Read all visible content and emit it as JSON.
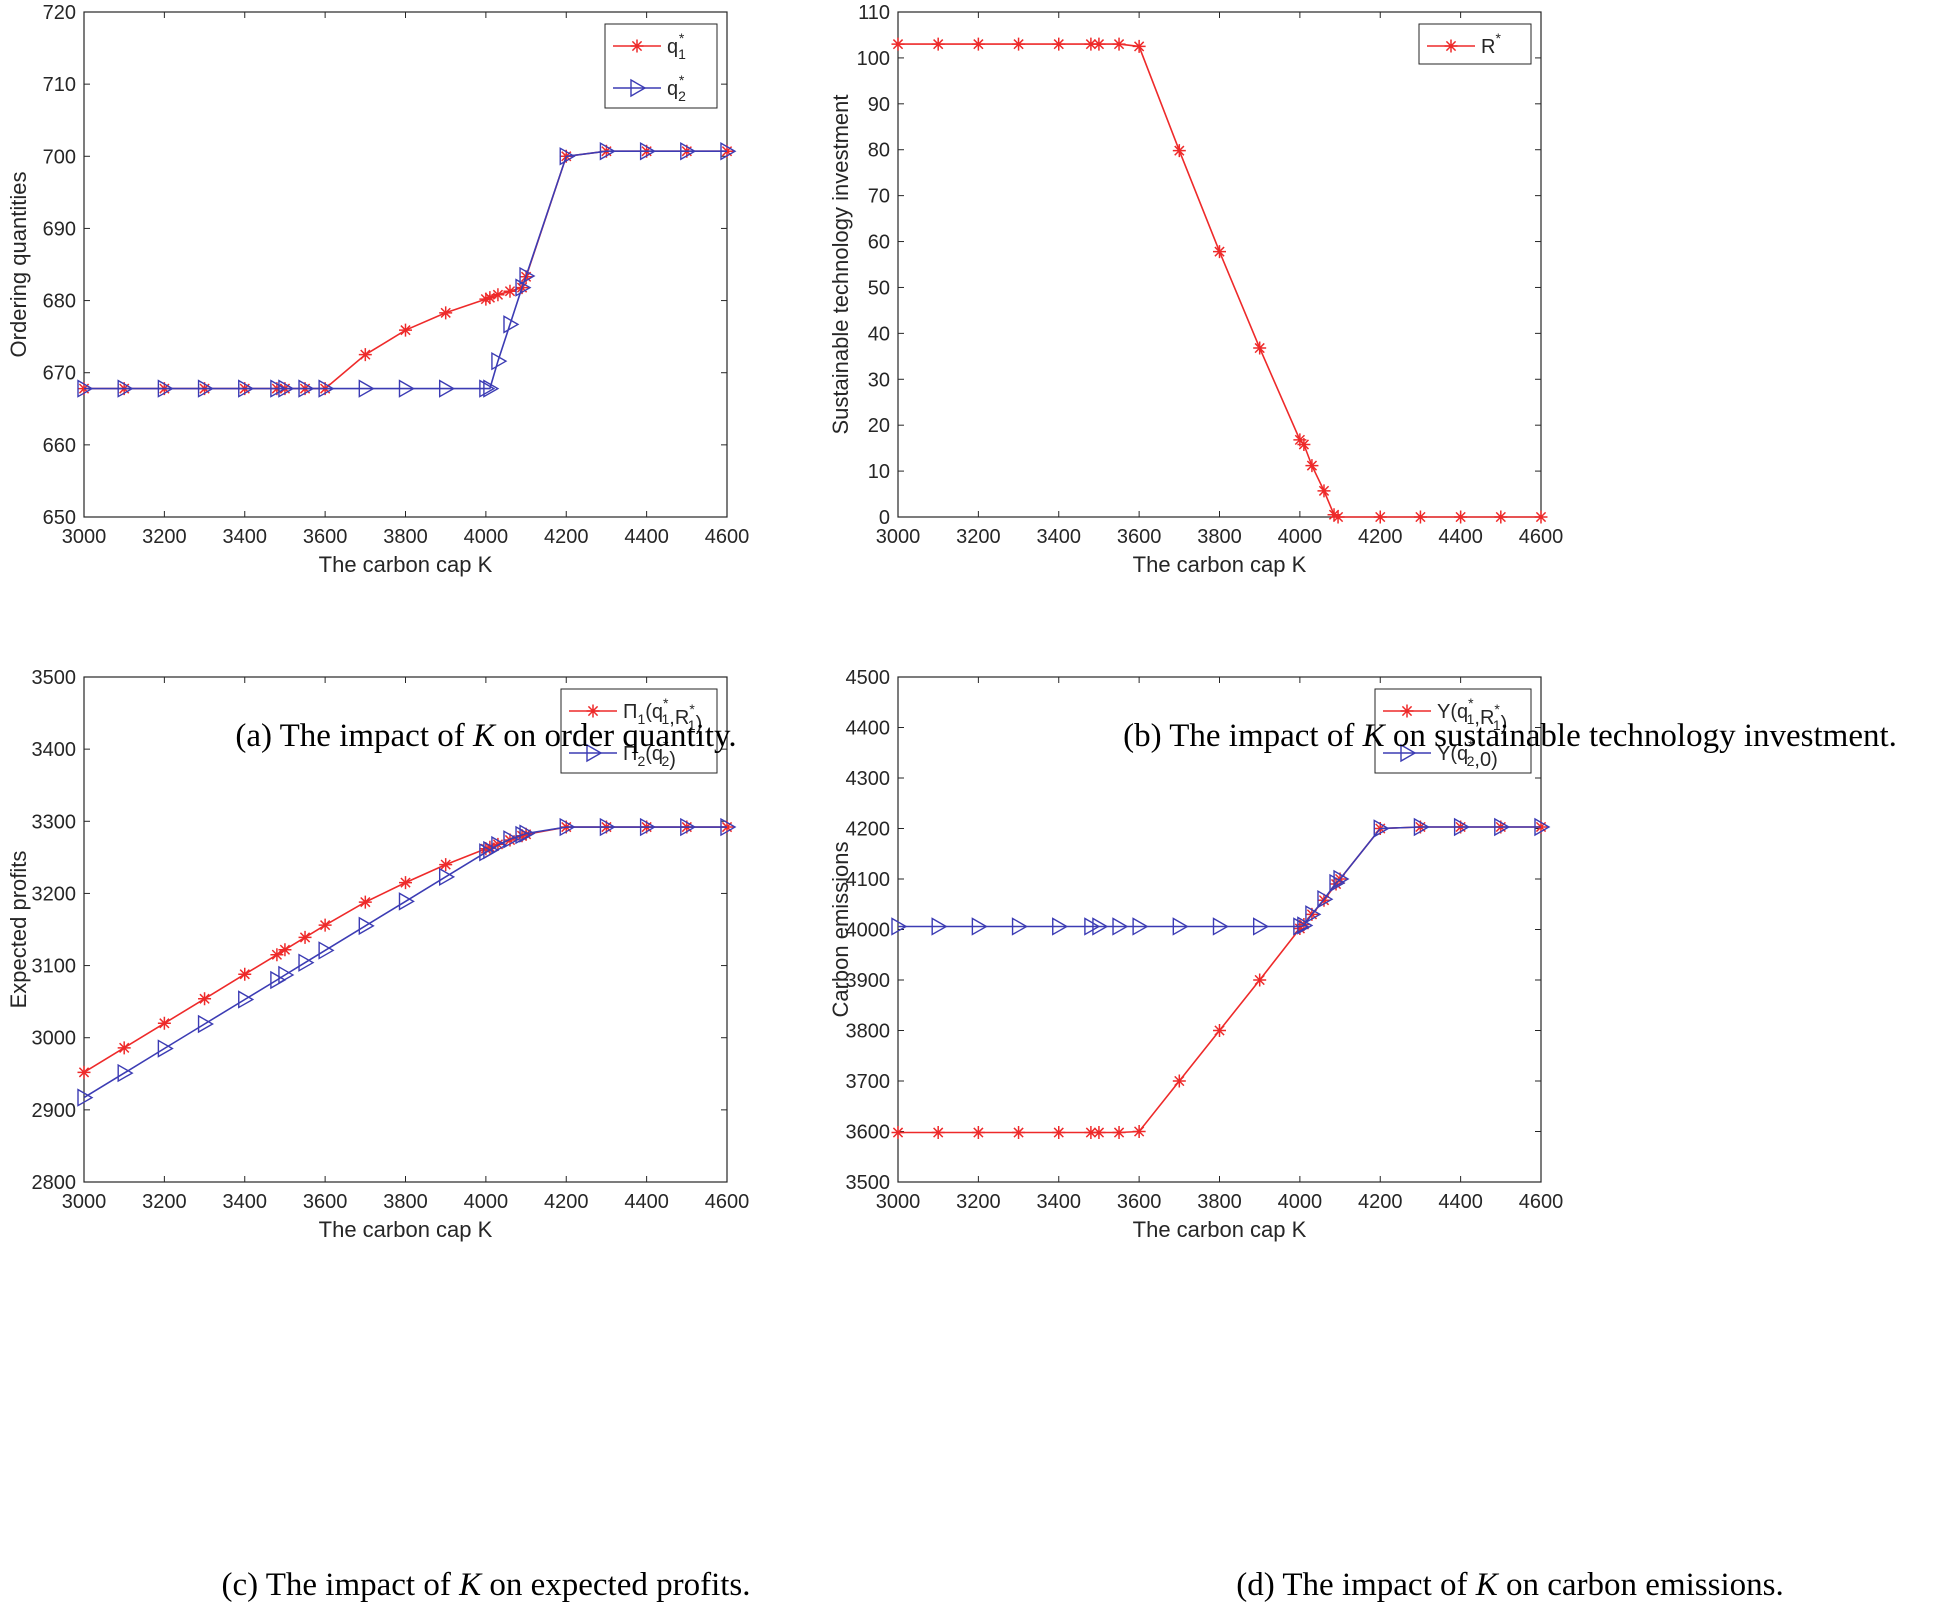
{
  "colors": {
    "series1": "#ee2a2a",
    "series2": "#3c3cb4",
    "axis": "#262626",
    "background": "#ffffff"
  },
  "figure": {
    "captions": [
      {
        "prefix": "(a) The impact of ",
        "var": "K",
        "suffix": " on order quantity."
      },
      {
        "prefix": "(b) The impact of ",
        "var": "K",
        "suffix": " on sustainable technology investment."
      },
      {
        "prefix": "(c) The impact of ",
        "var": "K",
        "suffix": " on expected profits."
      },
      {
        "prefix": "(d) The impact of ",
        "var": "K",
        "suffix": " on carbon emissions."
      }
    ]
  },
  "chart_data": [
    {
      "type": "line",
      "xlabel": "The carbon cap K",
      "ylabel": "Ordering quantities",
      "xlim": [
        3000,
        4600
      ],
      "ylim": [
        650,
        720
      ],
      "xticks": [
        3000,
        3200,
        3400,
        3600,
        3800,
        4000,
        4200,
        4400,
        4600
      ],
      "yticks": [
        650,
        660,
        670,
        680,
        690,
        700,
        710,
        720
      ],
      "legend_position": "top-right",
      "series": [
        {
          "name": "q1*",
          "legend": {
            "base": "q",
            "sub": "1",
            "sup": "*"
          },
          "color": "#ee2a2a",
          "marker": "asterisk",
          "x": [
            3000,
            3100,
            3200,
            3300,
            3400,
            3480,
            3500,
            3550,
            3600,
            3700,
            3800,
            3900,
            4000,
            4010,
            4030,
            4060,
            4090,
            4100,
            4200,
            4300,
            4400,
            4500,
            4600
          ],
          "y": [
            667.8,
            667.8,
            667.8,
            667.8,
            667.8,
            667.8,
            667.8,
            667.8,
            667.8,
            672.5,
            675.9,
            678.3,
            680.2,
            680.4,
            680.8,
            681.3,
            681.8,
            683.3,
            700.0,
            700.7,
            700.7,
            700.7,
            700.7
          ]
        },
        {
          "name": "q2*",
          "legend": {
            "base": "q",
            "sub": "2",
            "sup": "*"
          },
          "color": "#3c3cb4",
          "marker": "triangle-right",
          "x": [
            3000,
            3100,
            3200,
            3300,
            3400,
            3480,
            3500,
            3550,
            3600,
            3700,
            3800,
            3900,
            4000,
            4010,
            4030,
            4060,
            4090,
            4100,
            4200,
            4300,
            4400,
            4500,
            4600
          ],
          "y": [
            667.8,
            667.8,
            667.8,
            667.8,
            667.8,
            667.8,
            667.8,
            667.8,
            667.8,
            667.8,
            667.8,
            667.8,
            667.8,
            667.8,
            671.6,
            676.7,
            681.8,
            683.4,
            700.0,
            700.7,
            700.7,
            700.7,
            700.7
          ]
        }
      ]
    },
    {
      "type": "line",
      "xlabel": "The carbon cap K",
      "ylabel": "Sustainable technology investment",
      "xlim": [
        3000,
        4600
      ],
      "ylim": [
        0,
        110
      ],
      "xticks": [
        3000,
        3200,
        3400,
        3600,
        3800,
        4000,
        4200,
        4400,
        4600
      ],
      "yticks": [
        0,
        10,
        20,
        30,
        40,
        50,
        60,
        70,
        80,
        90,
        100,
        110
      ],
      "legend_position": "top-right",
      "series": [
        {
          "name": "R*",
          "legend": {
            "base": "R",
            "sub": "",
            "sup": "*"
          },
          "color": "#ee2a2a",
          "marker": "asterisk",
          "x": [
            3000,
            3100,
            3200,
            3300,
            3400,
            3480,
            3500,
            3550,
            3600,
            3700,
            3800,
            3900,
            4000,
            4010,
            4030,
            4060,
            4085,
            4095,
            4200,
            4300,
            4400,
            4500,
            4600
          ],
          "y": [
            103,
            103,
            103,
            103,
            103,
            103,
            103,
            103,
            102.5,
            79.8,
            57.8,
            36.8,
            16.8,
            15.8,
            11.2,
            5.7,
            0.5,
            0,
            0,
            0,
            0,
            0,
            0
          ]
        }
      ]
    },
    {
      "type": "line",
      "xlabel": "The carbon cap K",
      "ylabel": "Expected profits",
      "xlim": [
        3000,
        4600
      ],
      "ylim": [
        2800,
        3500
      ],
      "xticks": [
        3000,
        3200,
        3400,
        3600,
        3800,
        4000,
        4200,
        4400,
        4600
      ],
      "yticks": [
        2800,
        2900,
        3000,
        3100,
        3200,
        3300,
        3400,
        3500
      ],
      "legend_position": "top-right",
      "series": [
        {
          "name": "Π1(q1*,R1*)",
          "legend": {
            "base": "Π",
            "sub": "1",
            "args": [
              {
                "b": "q",
                "sub": "1",
                "sup": "*"
              },
              {
                "b": "R",
                "sub": "1",
                "sup": "*"
              }
            ]
          },
          "color": "#ee2a2a",
          "marker": "asterisk",
          "x": [
            3000,
            3100,
            3200,
            3300,
            3400,
            3480,
            3500,
            3550,
            3600,
            3700,
            3800,
            3900,
            4000,
            4010,
            4030,
            4060,
            4090,
            4100,
            4200,
            4300,
            4400,
            4500,
            4600
          ],
          "y": [
            2952,
            2986,
            3020,
            3054,
            3088,
            3115,
            3122,
            3139,
            3156,
            3188,
            3215,
            3240,
            3262,
            3264,
            3268,
            3274,
            3280,
            3282,
            3292,
            3292,
            3292,
            3292,
            3292
          ]
        },
        {
          "name": "Π2(q2*)",
          "legend": {
            "base": "Π",
            "sub": "2",
            "args": [
              {
                "b": "q",
                "sub": "2",
                "sup": "*"
              }
            ]
          },
          "color": "#3c3cb4",
          "marker": "triangle-right",
          "x": [
            3000,
            3100,
            3200,
            3300,
            3400,
            3480,
            3500,
            3550,
            3600,
            3700,
            3800,
            3900,
            4000,
            4010,
            4030,
            4060,
            4090,
            4100,
            4200,
            4300,
            4400,
            4500,
            4600
          ],
          "y": [
            2917,
            2951,
            2985,
            3019,
            3053,
            3080,
            3087,
            3104,
            3121,
            3155,
            3189,
            3223,
            3257,
            3260,
            3267,
            3275,
            3281,
            3283,
            3292,
            3292,
            3292,
            3292,
            3292
          ]
        }
      ]
    },
    {
      "type": "line",
      "xlabel": "The carbon cap K",
      "ylabel": "Carbon emissions",
      "xlim": [
        3000,
        4600
      ],
      "ylim": [
        3500,
        4500
      ],
      "xticks": [
        3000,
        3200,
        3400,
        3600,
        3800,
        4000,
        4200,
        4400,
        4600
      ],
      "yticks": [
        3500,
        3600,
        3700,
        3800,
        3900,
        4000,
        4100,
        4200,
        4300,
        4400,
        4500
      ],
      "legend_position": "top-right",
      "series": [
        {
          "name": "Y(q1*,R1*)",
          "legend": {
            "base": "Y",
            "sub": "",
            "args": [
              {
                "b": "q",
                "sub": "1",
                "sup": "*"
              },
              {
                "b": "R",
                "sub": "1",
                "sup": "*"
              }
            ]
          },
          "color": "#ee2a2a",
          "marker": "asterisk",
          "x": [
            3000,
            3100,
            3200,
            3300,
            3400,
            3480,
            3500,
            3550,
            3600,
            3700,
            3800,
            3900,
            4000,
            4010,
            4030,
            4060,
            4090,
            4100,
            4200,
            4300,
            4400,
            4500,
            4600
          ],
          "y": [
            3598,
            3598,
            3598,
            3598,
            3598,
            3598,
            3598,
            3598,
            3600,
            3700,
            3800,
            3900,
            4002,
            4010,
            4030,
            4058,
            4090,
            4100,
            4200,
            4203,
            4203,
            4203,
            4203
          ]
        },
        {
          "name": "Y(q2*,0)",
          "legend": {
            "base": "Y",
            "sub": "",
            "args": [
              {
                "b": "q",
                "sub": "2",
                "sup": "*"
              },
              {
                "b": "0",
                "sub": "",
                "sup": ""
              }
            ]
          },
          "color": "#3c3cb4",
          "marker": "triangle-right",
          "x": [
            3000,
            3100,
            3200,
            3300,
            3400,
            3480,
            3500,
            3550,
            3600,
            3700,
            3800,
            3900,
            4000,
            4010,
            4030,
            4060,
            4090,
            4100,
            4200,
            4300,
            4400,
            4500,
            4600
          ],
          "y": [
            4006,
            4006,
            4006,
            4006,
            4006,
            4006,
            4006,
            4006,
            4006,
            4006,
            4006,
            4006,
            4006,
            4008,
            4030,
            4060,
            4092,
            4100,
            4200,
            4203,
            4203,
            4203,
            4203
          ]
        }
      ]
    }
  ]
}
